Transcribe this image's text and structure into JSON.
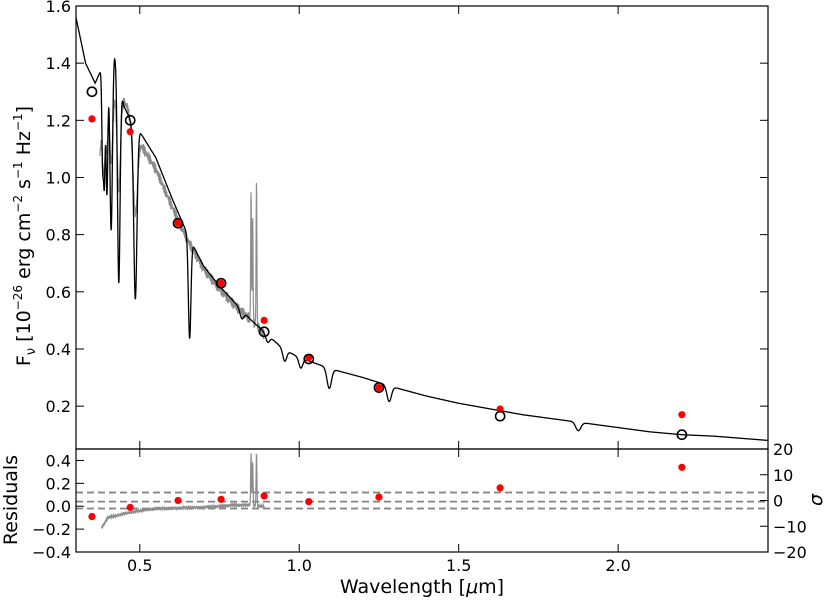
{
  "chart_data": [
    {
      "panel": "top",
      "type": "line",
      "title": "",
      "xlabel": "",
      "ylabel": "F",
      "ylabel_sub": "ν",
      "ylabel_rest_a": " [10",
      "ylabel_exp1": "−26",
      "ylabel_rest_b": " erg cm",
      "ylabel_exp2": "−2",
      "ylabel_rest_c": " s",
      "ylabel_exp3": "−1",
      "ylabel_rest_d": " Hz",
      "ylabel_exp4": "−1",
      "ylabel_rest_e": "]",
      "xlim": [
        0.3,
        2.47
      ],
      "ylim": [
        0.05,
        1.6
      ],
      "y_ticks": [
        "0.2",
        "0.4",
        "0.6",
        "0.8",
        "1.0",
        "1.2",
        "1.4",
        "1.6"
      ],
      "grid": false,
      "model_color": "#000000",
      "spectrum_color": "#8c8c8c",
      "observed_color": "#ff0000",
      "model_points_color": "#000000",
      "observed_points": {
        "x": [
          0.35,
          0.47,
          0.62,
          0.755,
          0.89,
          1.03,
          1.25,
          1.63,
          2.2
        ],
        "y": [
          1.205,
          1.16,
          0.84,
          0.63,
          0.5,
          0.37,
          0.265,
          0.19,
          0.17
        ]
      },
      "model_points": {
        "x": [
          0.35,
          0.47,
          0.62,
          0.755,
          0.89,
          1.03,
          1.25,
          1.63,
          2.2
        ],
        "y": [
          1.3,
          1.2,
          0.84,
          0.63,
          0.46,
          0.365,
          0.265,
          0.165,
          0.1
        ]
      },
      "model_curve": {
        "continuum_x": [
          0.3,
          0.33,
          0.36,
          0.38,
          0.4,
          0.42,
          0.45,
          0.48,
          0.5,
          0.55,
          0.6,
          0.65,
          0.7,
          0.75,
          0.8,
          0.85,
          0.9,
          0.95,
          1.0,
          1.1,
          1.2,
          1.3,
          1.4,
          1.5,
          1.6,
          1.7,
          1.8,
          1.9,
          2.0,
          2.1,
          2.2,
          2.3,
          2.47
        ],
        "continuum_y": [
          1.56,
          1.4,
          1.33,
          1.38,
          1.43,
          1.44,
          1.25,
          1.18,
          1.16,
          1.07,
          0.93,
          0.8,
          0.69,
          0.62,
          0.56,
          0.5,
          0.45,
          0.4,
          0.37,
          0.33,
          0.3,
          0.265,
          0.235,
          0.21,
          0.19,
          0.17,
          0.155,
          0.14,
          0.125,
          0.11,
          0.1,
          0.095,
          0.08
        ],
        "absorption_lines": [
          {
            "x": 0.3835,
            "depth": 0.33,
            "width": 0.0025
          },
          {
            "x": 0.3889,
            "depth": 0.4,
            "width": 0.0025
          },
          {
            "x": 0.397,
            "depth": 0.48,
            "width": 0.003
          },
          {
            "x": 0.4102,
            "depth": 0.62,
            "width": 0.004
          },
          {
            "x": 0.4341,
            "depth": 0.72,
            "width": 0.004
          },
          {
            "x": 0.4861,
            "depth": 0.6,
            "width": 0.005
          },
          {
            "x": 0.6563,
            "depth": 0.35,
            "width": 0.004
          },
          {
            "x": 0.82,
            "depth": 0.03,
            "width": 0.006
          },
          {
            "x": 0.901,
            "depth": 0.025,
            "width": 0.006
          },
          {
            "x": 0.9546,
            "depth": 0.04,
            "width": 0.006
          },
          {
            "x": 1.005,
            "depth": 0.035,
            "width": 0.006
          },
          {
            "x": 1.094,
            "depth": 0.07,
            "width": 0.007
          },
          {
            "x": 1.282,
            "depth": 0.055,
            "width": 0.007
          },
          {
            "x": 1.875,
            "depth": 0.03,
            "width": 0.008
          }
        ]
      },
      "spectrum": {
        "x": [
          0.375,
          0.38,
          0.39,
          0.4,
          0.42,
          0.44,
          0.46,
          0.48,
          0.5,
          0.55,
          0.6,
          0.65,
          0.7,
          0.75,
          0.8,
          0.84,
          0.86,
          0.89
        ],
        "y": [
          1.08,
          1.2,
          1.28,
          1.36,
          1.31,
          1.28,
          1.25,
          1.15,
          1.12,
          1.03,
          0.9,
          0.78,
          0.68,
          0.61,
          0.55,
          0.51,
          0.49,
          0.45
        ],
        "emission_x": [
          0.849,
          0.854,
          0.866
        ],
        "emission_peak": [
          0.95,
          0.85,
          0.99
        ]
      }
    },
    {
      "panel": "bottom",
      "type": "scatter",
      "xlabel": "Wavelength [μm]",
      "xlabel_a": "Wavelength [",
      "xlabel_mu": "μ",
      "xlabel_b": "m]",
      "ylabel": "Residuals",
      "ylabel_right": "σ",
      "xlim": [
        0.3,
        2.47
      ],
      "ylim": [
        -0.4,
        0.5
      ],
      "x_ticks": [
        "0.5",
        "1.0",
        "1.5",
        "2.0"
      ],
      "y_ticks": [
        "−0.4",
        "−0.2",
        "0.0",
        "0.2",
        "0.4"
      ],
      "y2_ticks": [
        "−20",
        "−10",
        "0",
        "10",
        "20"
      ],
      "y2lim": [
        -20,
        20
      ],
      "dashed_levels": [
        -0.02,
        0.04,
        0.12
      ],
      "dashed_color": "#808080",
      "residual_points": {
        "x": [
          0.35,
          0.47,
          0.62,
          0.755,
          0.89,
          1.03,
          1.25,
          1.63,
          2.2
        ],
        "y": [
          -0.09,
          -0.01,
          0.05,
          0.06,
          0.09,
          0.04,
          0.08,
          0.16,
          0.34
        ]
      },
      "residual_spectrum": {
        "x": [
          0.38,
          0.4,
          0.43,
          0.46,
          0.5,
          0.55,
          0.6,
          0.65,
          0.7,
          0.75,
          0.8,
          0.84,
          0.87,
          0.89
        ],
        "y": [
          -0.19,
          -0.1,
          -0.08,
          -0.06,
          -0.04,
          -0.02,
          -0.02,
          -0.01,
          -0.01,
          0.0,
          0.01,
          0.01,
          0.0,
          0.0
        ],
        "emission_x": [
          0.849,
          0.854,
          0.866
        ],
        "emission_peak": [
          0.47,
          0.38,
          0.48
        ]
      }
    }
  ]
}
